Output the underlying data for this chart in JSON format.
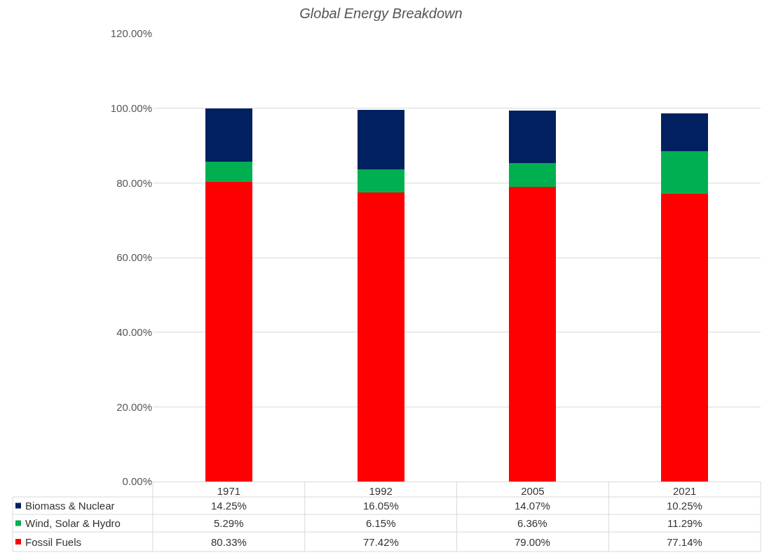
{
  "chart_data": {
    "type": "bar",
    "title": "Global Energy Breakdown",
    "stacked": true,
    "categories": [
      "1971",
      "1992",
      "2005",
      "2021"
    ],
    "series": [
      {
        "name": "Fossil Fuels",
        "color": "#ff0000",
        "values": [
          80.33,
          77.42,
          79.0,
          77.14
        ],
        "value_labels": [
          "80.33%",
          "77.42%",
          "79.00%",
          "77.14%"
        ]
      },
      {
        "name": "Wind, Solar & Hydro",
        "color": "#00b050",
        "values": [
          5.29,
          6.15,
          6.36,
          11.29
        ],
        "value_labels": [
          "5.29%",
          "6.15%",
          "6.36%",
          "11.29%"
        ]
      },
      {
        "name": "Biomass & Nuclear",
        "color": "#002060",
        "values": [
          14.25,
          16.05,
          14.07,
          10.25
        ],
        "value_labels": [
          "14.25%",
          "16.05%",
          "14.07%",
          "10.25%"
        ]
      }
    ],
    "ylim": [
      0,
      120
    ],
    "yticks": [
      {
        "value": 0,
        "label": "0.00%"
      },
      {
        "value": 20,
        "label": "20.00%"
      },
      {
        "value": 40,
        "label": "40.00%"
      },
      {
        "value": 60,
        "label": "60.00%"
      },
      {
        "value": 80,
        "label": "80.00%"
      },
      {
        "value": 100,
        "label": "100.00%"
      },
      {
        "value": 120,
        "label": "120.00%"
      }
    ],
    "grid": "y",
    "legend": "bottom"
  }
}
